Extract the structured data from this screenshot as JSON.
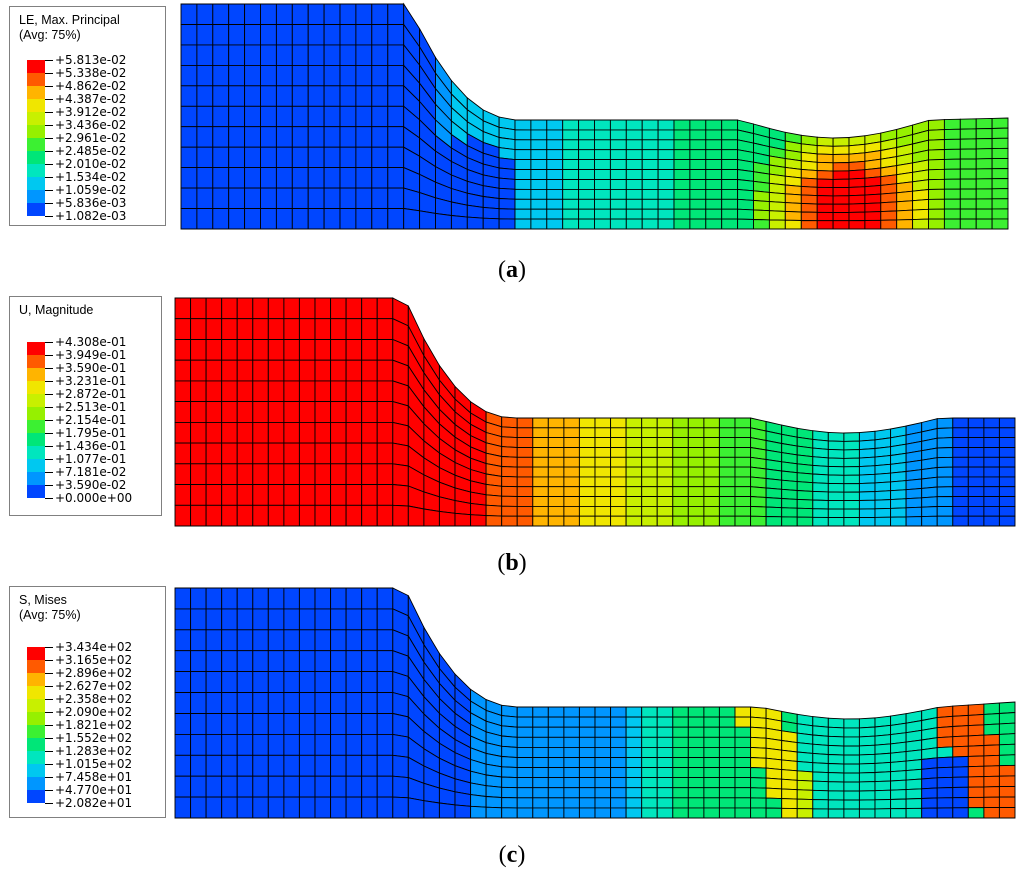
{
  "panels": [
    {
      "id": "a",
      "caption": "(a)",
      "caption_letter": "a",
      "legend": {
        "title_line1": "LE, Max. Principal",
        "title_line2": "(Avg: 75%)",
        "ticks": [
          "+5.813e-02",
          "+5.338e-02",
          "+4.862e-02",
          "+4.387e-02",
          "+3.912e-02",
          "+3.436e-02",
          "+2.961e-02",
          "+2.485e-02",
          "+2.010e-02",
          "+1.534e-02",
          "+1.059e-02",
          "+5.836e-03",
          "+1.082e-03"
        ]
      }
    },
    {
      "id": "b",
      "caption": "(b)",
      "caption_letter": "b",
      "legend": {
        "title_line1": "U, Magnitude",
        "title_line2": "",
        "ticks": [
          "+4.308e-01",
          "+3.949e-01",
          "+3.590e-01",
          "+3.231e-01",
          "+2.872e-01",
          "+2.513e-01",
          "+2.154e-01",
          "+1.795e-01",
          "+1.436e-01",
          "+1.077e-01",
          "+7.181e-02",
          "+3.590e-02",
          "+0.000e+00"
        ]
      }
    },
    {
      "id": "c",
      "caption": "(c)",
      "caption_letter": "c",
      "legend": {
        "title_line1": "S, Mises",
        "title_line2": "(Avg: 75%)",
        "ticks": [
          "+3.434e+02",
          "+3.165e+02",
          "+2.896e+02",
          "+2.627e+02",
          "+2.358e+02",
          "+2.090e+02",
          "+1.821e+02",
          "+1.552e+02",
          "+1.283e+02",
          "+1.015e+02",
          "+7.458e+01",
          "+4.770e+01",
          "+2.082e+01"
        ]
      }
    }
  ],
  "colormap": [
    "#ff0000",
    "#ff5a00",
    "#ffb400",
    "#f0e600",
    "#c8f000",
    "#96f000",
    "#3cf032",
    "#00e678",
    "#00e6be",
    "#00c8f0",
    "#0096ff",
    "#0046ff",
    "#0000ff"
  ]
}
